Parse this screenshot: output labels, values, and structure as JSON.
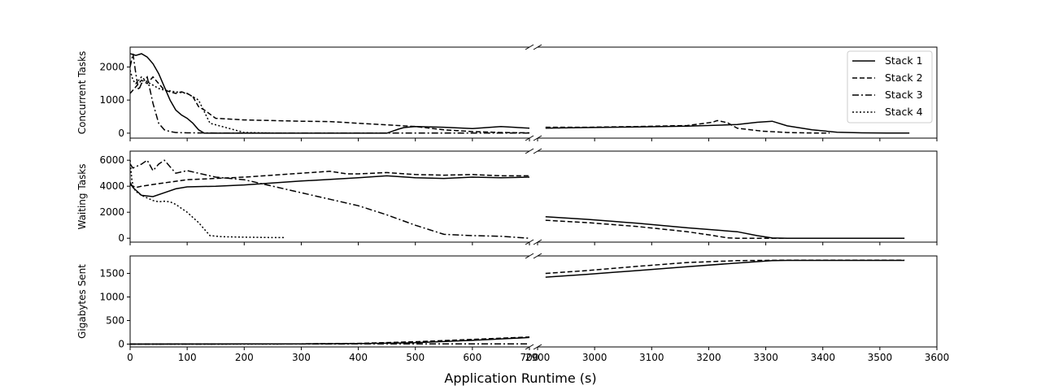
{
  "chart_data": {
    "type": "line",
    "xlabel": "Application Runtime (s)",
    "broken_x_axis": true,
    "x_segments": [
      {
        "xlim": [
          0,
          700
        ],
        "ticks": [
          "0",
          "100",
          "200",
          "300",
          "400",
          "500",
          "600",
          "700"
        ]
      },
      {
        "xlim": [
          2800,
          3600
        ],
        "ticks": [
          "2900",
          "3000",
          "3100",
          "3200",
          "3300",
          "3400",
          "3500",
          "3600"
        ]
      }
    ],
    "legend": {
      "placement": "top-right",
      "entries": [
        "Stack 1",
        "Stack 2",
        "Stack 3",
        "Stack 4"
      ]
    },
    "series_styles": [
      {
        "name": "Stack 1",
        "dash": "solid"
      },
      {
        "name": "Stack 2",
        "dash": "dashed"
      },
      {
        "name": "Stack 3",
        "dash": "dashdot"
      },
      {
        "name": "Stack 4",
        "dash": "dotted"
      }
    ],
    "panels": [
      {
        "ylabel": "Concurrent Tasks",
        "ylim": [
          -150,
          2600
        ],
        "yticks": [
          0,
          1000,
          2000
        ],
        "series": [
          {
            "name": "Stack 1",
            "x": [
              0,
              5,
              10,
              20,
              30,
              40,
              50,
              60,
              70,
              80,
              90,
              100,
              110,
              120,
              130,
              140,
              200,
              300,
              400,
              450,
              460,
              470,
              480,
              500,
              550,
              600,
              650,
              700,
              2816,
              2900,
              3000,
              3100,
              3200,
              3240,
              3270,
              3300,
              3350,
              3400,
              3450,
              3500,
              3545
            ],
            "y": [
              2400,
              2380,
              2350,
              2400,
              2300,
              2100,
              1800,
              1400,
              1000,
              700,
              550,
              450,
              300,
              100,
              0,
              0,
              0,
              0,
              0,
              0,
              60,
              120,
              170,
              200,
              180,
              140,
              200,
              150,
              150,
              170,
              190,
              210,
              260,
              330,
              360,
              220,
              100,
              30,
              10,
              5,
              3
            ]
          },
          {
            "name": "Stack 2",
            "x": [
              0,
              10,
              20,
              30,
              40,
              50,
              60,
              70,
              80,
              90,
              100,
              110,
              120,
              130,
              150,
              200,
              250,
              300,
              350,
              400,
              450,
              500,
              550,
              600,
              650,
              700,
              2816,
              2900,
              3000,
              3100,
              3150,
              3160,
              3180,
              3200,
              3250,
              3300,
              3350,
              3385
            ],
            "y": [
              1200,
              1400,
              1600,
              1500,
              1700,
              1500,
              1300,
              1250,
              1200,
              1250,
              1200,
              1100,
              800,
              700,
              450,
              400,
              380,
              360,
              350,
              300,
              250,
              200,
              100,
              50,
              20,
              10,
              180,
              180,
              200,
              230,
              330,
              380,
              320,
              150,
              60,
              20,
              5,
              2
            ]
          },
          {
            "name": "Stack 3",
            "x": [
              0,
              5,
              10,
              15,
              20,
              30,
              40,
              50,
              60,
              70,
              80,
              100,
              150,
              200,
              300,
              400,
              500,
              600,
              700
            ],
            "y": [
              2000,
              2400,
              1800,
              1300,
              1500,
              1700,
              900,
              300,
              100,
              50,
              20,
              10,
              5,
              5,
              5,
              5,
              5,
              5,
              5
            ]
          },
          {
            "name": "Stack 4",
            "x": [
              0,
              5,
              10,
              20,
              30,
              40,
              50,
              60,
              80,
              100,
              120,
              140,
              200,
              250,
              270
            ],
            "y": [
              1900,
              1600,
              1500,
              1700,
              1550,
              1450,
              1350,
              1300,
              1250,
              1200,
              1000,
              300,
              20,
              5,
              5
            ]
          }
        ]
      },
      {
        "ylabel": "Waiting Tasks",
        "ylim": [
          -300,
          6700
        ],
        "yticks": [
          0,
          2000,
          4000,
          6000
        ],
        "series": [
          {
            "name": "Stack 1",
            "x": [
              0,
              5,
              10,
              20,
              40,
              60,
              80,
              100,
              150,
              200,
              300,
              400,
              450,
              500,
              550,
              600,
              650,
              700,
              2816,
              2900,
              3000,
              3100,
              3200,
              3240,
              3270,
              3300,
              3400,
              3500,
              3535
            ],
            "y": [
              4300,
              3900,
              3700,
              3300,
              3200,
              3500,
              3800,
              3950,
              4000,
              4100,
              4400,
              4650,
              4800,
              4650,
              4600,
              4700,
              4650,
              4700,
              1650,
              1450,
              1150,
              800,
              500,
              200,
              20,
              0,
              0,
              0,
              0
            ]
          },
          {
            "name": "Stack 2",
            "x": [
              0,
              10,
              20,
              50,
              100,
              200,
              300,
              350,
              380,
              400,
              450,
              500,
              550,
              600,
              650,
              700,
              2816,
              2900,
              3000,
              3100,
              3150,
              3180,
              3200,
              3250,
              3300,
              3400,
              3500,
              3535
            ],
            "y": [
              4100,
              3900,
              4000,
              4200,
              4500,
              4700,
              5000,
              5150,
              4950,
              4950,
              5050,
              4900,
              4850,
              4900,
              4800,
              4800,
              1380,
              1200,
              900,
              500,
              220,
              30,
              0,
              0,
              0,
              0,
              0,
              0
            ]
          },
          {
            "name": "Stack 3",
            "x": [
              0,
              5,
              10,
              20,
              30,
              40,
              50,
              60,
              80,
              100,
              150,
              200,
              250,
              300,
              350,
              400,
              450,
              500,
              550,
              600,
              650,
              700
            ],
            "y": [
              5700,
              5400,
              5500,
              5700,
              6000,
              5200,
              5700,
              6000,
              5000,
              5200,
              4700,
              4500,
              4000,
              3500,
              3000,
              2500,
              1800,
              1000,
              300,
              200,
              150,
              0
            ]
          },
          {
            "name": "Stack 4",
            "x": [
              0,
              3,
              6,
              10,
              20,
              30,
              40,
              50,
              60,
              70,
              80,
              100,
              120,
              140,
              160,
              200,
              250,
              270
            ],
            "y": [
              6000,
              4500,
              3900,
              3600,
              3300,
              3100,
              2900,
              2800,
              2850,
              2800,
              2600,
              2000,
              1200,
              200,
              120,
              80,
              50,
              50
            ]
          }
        ]
      },
      {
        "ylabel": "Gigabytes Sent",
        "ylim": [
          -60,
          1870
        ],
        "yticks": [
          0,
          500,
          1000,
          1500
        ],
        "series": [
          {
            "name": "Stack 1",
            "x": [
              0,
              100,
              200,
              300,
              400,
              500,
              600,
              700,
              2816,
              2900,
              3000,
              3100,
              3200,
              3270,
              3300,
              3400,
              3500,
              3535
            ],
            "y": [
              0,
              2,
              4,
              6,
              10,
              30,
              80,
              140,
              1420,
              1480,
              1560,
              1640,
              1720,
              1770,
              1775,
              1775,
              1775,
              1775
            ]
          },
          {
            "name": "Stack 2",
            "x": [
              0,
              100,
              200,
              300,
              400,
              500,
              600,
              700,
              2816,
              2900,
              3000,
              3100,
              3200,
              3300,
              3400,
              3500,
              3535
            ],
            "y": [
              0,
              2,
              4,
              6,
              15,
              50,
              100,
              150,
              1500,
              1560,
              1650,
              1730,
              1770,
              1780,
              1780,
              1780,
              1780
            ]
          },
          {
            "name": "Stack 3",
            "x": [
              0,
              100,
              200,
              300,
              400,
              500,
              600,
              700
            ],
            "y": [
              0,
              1,
              2,
              2,
              3,
              4,
              5,
              6
            ]
          },
          {
            "name": "Stack 4",
            "x": [
              0,
              100,
              200,
              270
            ],
            "y": [
              0,
              1,
              1,
              1
            ]
          }
        ]
      }
    ]
  }
}
